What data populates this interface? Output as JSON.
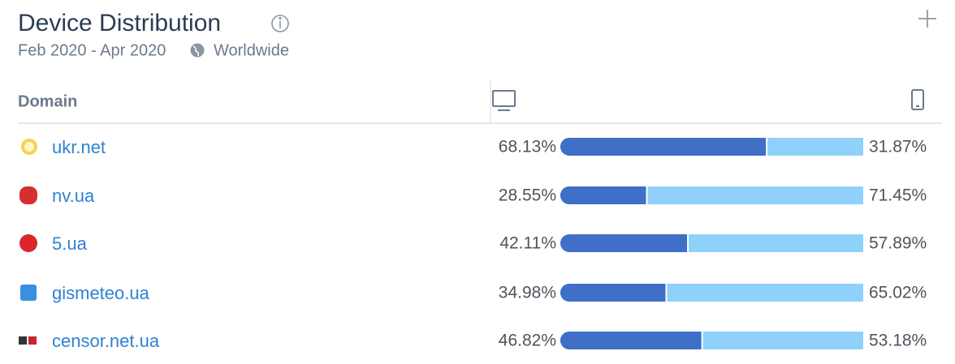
{
  "header": {
    "title": "Device Distribution",
    "date_range": "Feb 2020 - Apr 2020",
    "region": "Worldwide"
  },
  "table": {
    "column_header": "Domain",
    "colors": {
      "desktop": "#3f6fc7",
      "mobile": "#8fd1fb"
    },
    "rows": [
      {
        "domain": "ukr.net",
        "desktop": 68.13,
        "desktop_label": "68.13%",
        "mobile": 31.87,
        "mobile_label": "31.87%"
      },
      {
        "domain": "nv.ua",
        "desktop": 28.55,
        "desktop_label": "28.55%",
        "mobile": 71.45,
        "mobile_label": "71.45%"
      },
      {
        "domain": "5.ua",
        "desktop": 42.11,
        "desktop_label": "42.11%",
        "mobile": 57.89,
        "mobile_label": "57.89%"
      },
      {
        "domain": "gismeteo.ua",
        "desktop": 34.98,
        "desktop_label": "34.98%",
        "mobile": 65.02,
        "mobile_label": "65.02%"
      },
      {
        "domain": "censor.net.ua",
        "desktop": 46.82,
        "desktop_label": "46.82%",
        "mobile": 53.18,
        "mobile_label": "53.18%"
      }
    ]
  }
}
